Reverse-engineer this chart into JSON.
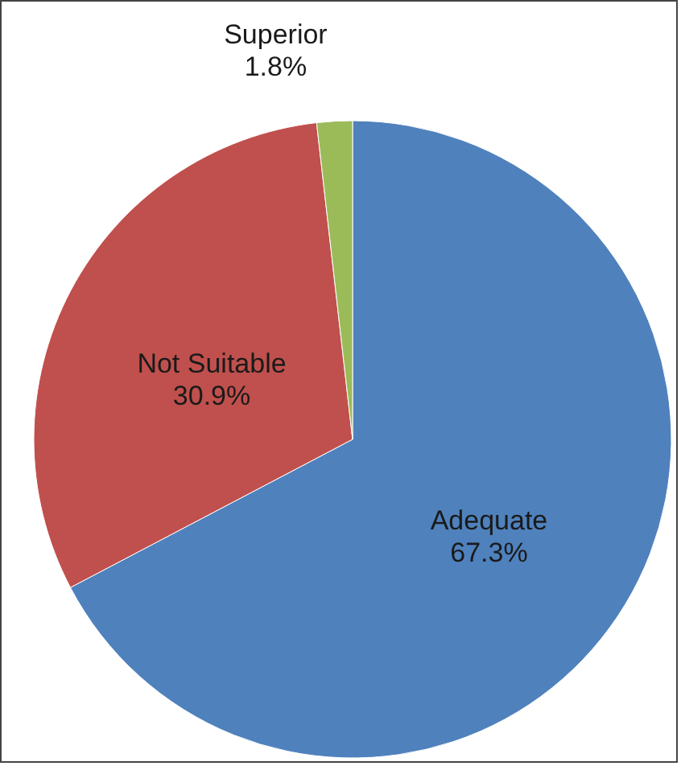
{
  "chart_data": {
    "type": "pie",
    "categories": [
      "Adequate",
      "Not Suitable",
      "Superior"
    ],
    "values": [
      67.3,
      30.9,
      1.8
    ],
    "value_labels": [
      "67.3%",
      "30.9%",
      "1.8%"
    ],
    "colors": [
      "#4f81bd",
      "#c0504d",
      "#9bbb59"
    ]
  }
}
